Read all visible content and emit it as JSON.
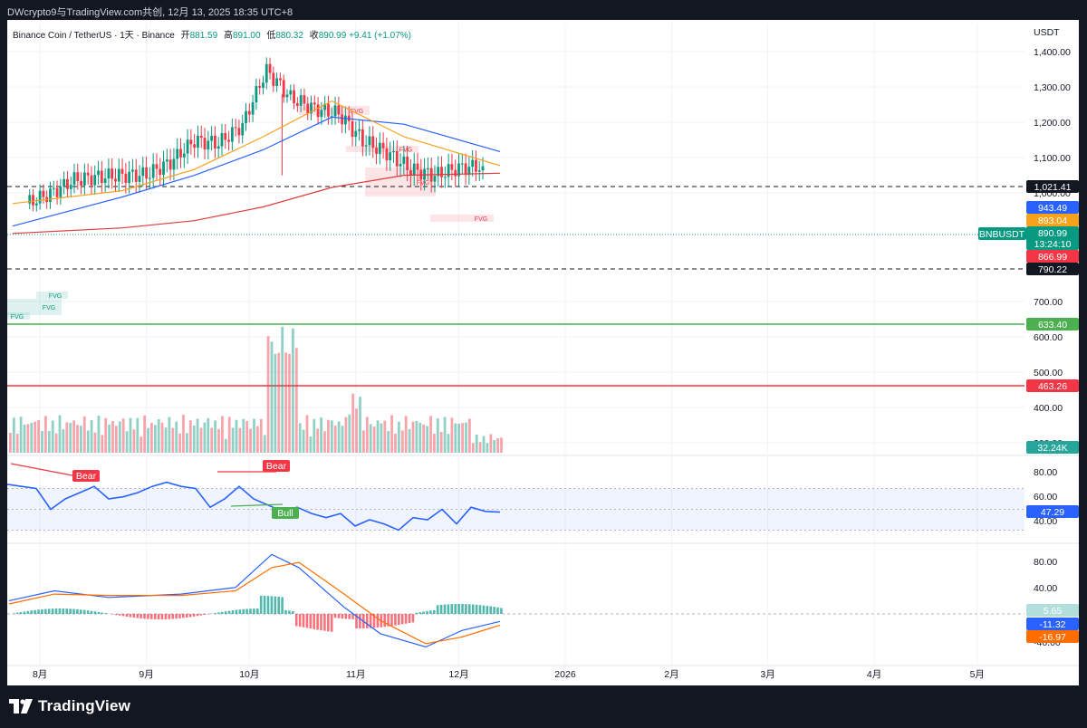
{
  "header": {
    "publisher_line": "DWcrypto9与TradingView.com共创,  12月 13, 2025 18:35 UTC+8"
  },
  "legend": {
    "symbol": "Binance Coin / TetherUS · 1天 · Binance",
    "open_label": "开",
    "open": "881.59",
    "high_label": "高",
    "high": "891.00",
    "low_label": "低",
    "low": "880.32",
    "close_label": "收",
    "close": "890.99",
    "change": "+9.41 (+1.07%)"
  },
  "brand": {
    "logo_text": "TradingView"
  },
  "colors": {
    "up": "#089981",
    "down": "#f23645",
    "ma_blue": "#2962ff",
    "ma_orange": "#f7a21b",
    "ma_red": "#e03c3c",
    "rsi": "#2962ff",
    "macd_signal": "#ff6d00",
    "green_level": "#4caf50",
    "red_level": "#f23645"
  },
  "chart_data": [
    {
      "type": "candlestick",
      "symbol": "BNBUSDT",
      "currency": "USDT",
      "x_ticks": [
        "8月",
        "9月",
        "10月",
        "11月",
        "12月",
        "2026",
        "2月",
        "3月",
        "4月",
        "5月"
      ],
      "y_ticks": [
        "1,400.00",
        "1,300.00",
        "1,200.00",
        "1,100.00",
        "1,000.00",
        "700.00",
        "600.00",
        "500.00",
        "400.00",
        "300.00"
      ],
      "ylim": [
        290,
        1430
      ],
      "scale": "log",
      "weekly_close": [
        [
          "2025-07-28",
          770
        ],
        [
          "2025-08-04",
          800
        ],
        [
          "2025-08-11",
          845
        ],
        [
          "2025-08-18",
          855
        ],
        [
          "2025-08-25",
          860
        ],
        [
          "2025-09-01",
          862
        ],
        [
          "2025-09-08",
          905
        ],
        [
          "2025-09-15",
          985
        ],
        [
          "2025-09-22",
          975
        ],
        [
          "2025-09-29",
          1045
        ],
        [
          "2025-10-06",
          1295
        ],
        [
          "2025-10-13",
          1165
        ],
        [
          "2025-10-20",
          1115
        ],
        [
          "2025-10-27",
          1095
        ],
        [
          "2025-11-03",
          985
        ],
        [
          "2025-11-10",
          940
        ],
        [
          "2025-11-17",
          880
        ],
        [
          "2025-11-24",
          860
        ],
        [
          "2025-12-01",
          885
        ],
        [
          "2025-12-08",
          890.99
        ]
      ],
      "period_high": 1370,
      "period_low": 790,
      "moving_averages": [
        {
          "values": [
            705,
            790,
            860,
            950,
            1080,
            1050,
            943.49
          ]
        },
        {
          "values": [
            770,
            810,
            880,
            1000,
            1150,
            1000,
            893.04
          ]
        },
        {
          "values": [
            685,
            700,
            720,
            760,
            820,
            860,
            866.99
          ]
        }
      ],
      "price_labels": [
        {
          "text": "1,021.41",
          "kind": "dashed-level"
        },
        {
          "text": "943.49",
          "kind": "ma-blue"
        },
        {
          "text": "893.04",
          "kind": "ma-orange"
        },
        {
          "text": "BNBUSDT",
          "kind": "symbol"
        },
        {
          "text": "890.99",
          "kind": "last"
        },
        {
          "text": "13:24:10",
          "kind": "countdown"
        },
        {
          "text": "866.99",
          "kind": "ma-red"
        },
        {
          "text": "790.22",
          "kind": "dashed-level"
        },
        {
          "text": "633.40",
          "kind": "green-level"
        },
        {
          "text": "463.26",
          "kind": "red-level"
        },
        {
          "text": "32.24K",
          "kind": "volume"
        }
      ],
      "annotations": [
        "FVG",
        "FVG",
        "FVG",
        "FVG",
        "FVG",
        "FVG",
        "FVG"
      ]
    },
    {
      "type": "line",
      "name": "RSI",
      "y_ticks": [
        "80.00",
        "60.00",
        "40.00"
      ],
      "ylim": [
        20,
        100
      ],
      "band": [
        30,
        70
      ],
      "current": "47.29",
      "annotations": [
        "Bear",
        "Bear",
        "Bull"
      ],
      "values": [
        74,
        72,
        70,
        50,
        60,
        66,
        72,
        60,
        62,
        66,
        72,
        76,
        72,
        70,
        52,
        60,
        72,
        60,
        54,
        48,
        52,
        46,
        42,
        46,
        34,
        40,
        36,
        30,
        42,
        40,
        50,
        36,
        52,
        48,
        47.29
      ]
    },
    {
      "type": "line",
      "name": "MACD",
      "y_ticks": [
        "80.00",
        "40.00",
        "-40.00"
      ],
      "ylim": [
        -55,
        105
      ],
      "current": [
        "5.65",
        "-11.32",
        "-16.97"
      ]
    }
  ]
}
